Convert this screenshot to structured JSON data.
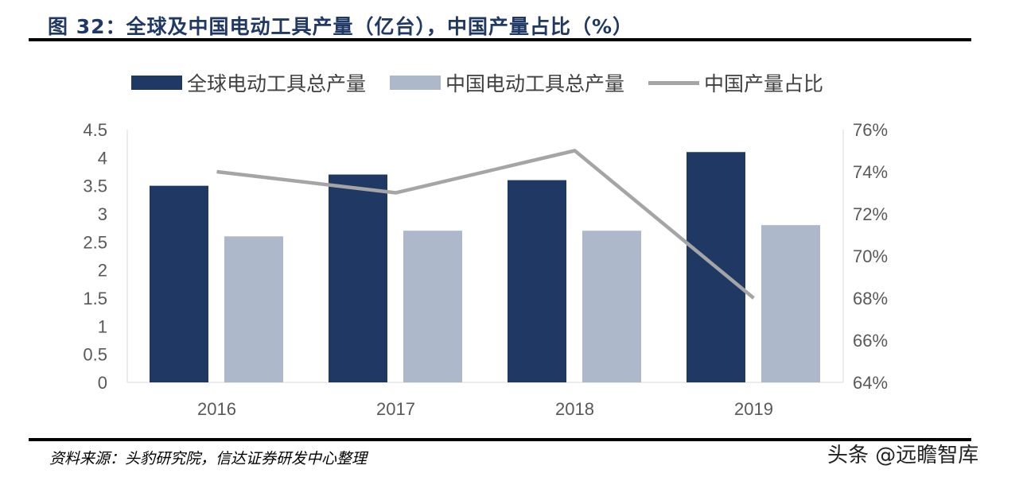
{
  "title": "图 32：全球及中国电动工具产量（亿台），中国产量占比（%）",
  "source": "资料来源：头豹研究院，信达证券研发中心整理",
  "watermark": "头条 @远瞻智库",
  "chart_data": {
    "type": "bar",
    "categories": [
      "2016",
      "2017",
      "2018",
      "2019"
    ],
    "series": [
      {
        "name": "全球电动工具总产量",
        "type": "bar",
        "axis": "left",
        "color": "#1f3864",
        "values": [
          3.5,
          3.7,
          3.6,
          4.1
        ]
      },
      {
        "name": "中国电动工具总产量",
        "type": "bar",
        "axis": "left",
        "color": "#adb9ca",
        "values": [
          2.6,
          2.7,
          2.7,
          2.8
        ]
      },
      {
        "name": "中国产量占比",
        "type": "line",
        "axis": "right",
        "color": "#a5a5a5",
        "values": [
          74,
          73,
          75,
          68
        ]
      }
    ],
    "y_left": {
      "lim": [
        0,
        4.5
      ],
      "ticks": [
        "0",
        "0.5",
        "1",
        "1.5",
        "2",
        "2.5",
        "3",
        "3.5",
        "4",
        "4.5"
      ]
    },
    "y_right": {
      "lim": [
        64,
        76
      ],
      "ticks": [
        "64%",
        "66%",
        "68%",
        "70%",
        "72%",
        "74%",
        "76%"
      ]
    },
    "legend_position": "top",
    "grid": false
  }
}
